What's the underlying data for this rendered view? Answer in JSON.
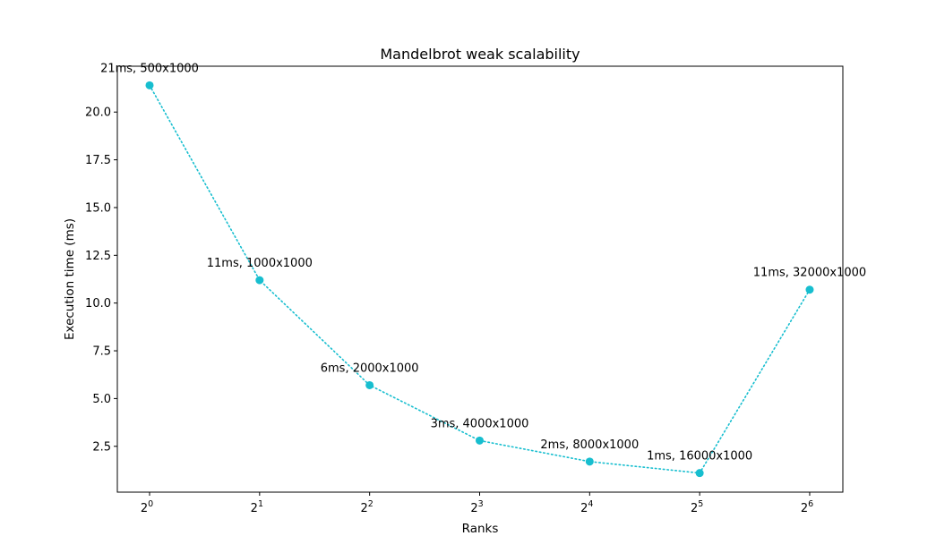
{
  "chart_data": {
    "type": "line",
    "title": "Mandelbrot weak scalability",
    "xlabel": "Ranks",
    "ylabel": "Execution time (ms)",
    "x_scale": "log2",
    "x": [
      1,
      2,
      4,
      8,
      16,
      32,
      64
    ],
    "x_tick_base": "2",
    "x_tick_exponents": [
      "0",
      "1",
      "2",
      "3",
      "4",
      "5",
      "6"
    ],
    "y_ticks": [
      "2.5",
      "5.0",
      "7.5",
      "10.0",
      "12.5",
      "15.0",
      "17.5",
      "20.0"
    ],
    "ylim": [
      0.1,
      22.4
    ],
    "grid": false,
    "series": [
      {
        "values": [
          21.4,
          11.2,
          5.7,
          2.8,
          1.7,
          1.1,
          10.7
        ],
        "color": "#17becf",
        "line_style": "dotted",
        "marker": "circle",
        "annotations": [
          "21ms, 500x1000",
          "11ms, 1000x1000",
          "6ms, 2000x1000",
          "3ms, 4000x1000",
          "2ms, 8000x1000",
          "1ms, 16000x1000",
          "11ms, 32000x1000"
        ]
      }
    ]
  }
}
